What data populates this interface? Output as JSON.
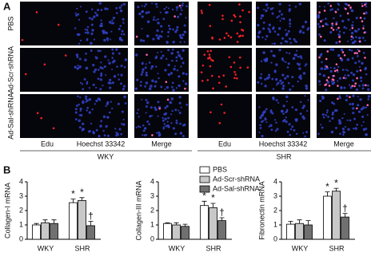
{
  "panel_a": {
    "label": "A",
    "rows": [
      "PBS",
      "Ad-Scr-shRNA",
      "Ad-Sal-shRNA"
    ],
    "columns": [
      "Edu",
      "Hoechst 33342",
      "Merge",
      "Edu",
      "Hoechst 33342",
      "Merge"
    ],
    "groups": [
      "WKY",
      "SHR"
    ]
  },
  "panel_b_label": "B",
  "chart_data": [
    {
      "type": "bar",
      "y_label": "Collagen-I mRNA",
      "categories": [
        "WKY",
        "SHR"
      ],
      "ylim": [
        0,
        4
      ],
      "yticks": [
        0,
        1,
        2,
        3,
        4
      ],
      "series": [
        {
          "name": "PBS",
          "color": "#ffffff",
          "values": [
            1.0,
            2.55
          ],
          "errors": [
            0.1,
            0.25
          ],
          "markers": [
            null,
            "*"
          ]
        },
        {
          "name": "Ad-Scr-shRNA",
          "color": "#c8c8c8",
          "values": [
            1.15,
            2.7
          ],
          "errors": [
            0.2,
            0.2
          ],
          "markers": [
            null,
            "*"
          ]
        },
        {
          "name": "Ad-Sal-shRNA",
          "color": "#707070",
          "values": [
            1.1,
            0.95
          ],
          "errors": [
            0.25,
            0.3
          ],
          "markers": [
            null,
            "†"
          ]
        }
      ]
    },
    {
      "type": "bar",
      "y_label": "Collagen-III mRNA",
      "categories": [
        "WKY",
        "SHR"
      ],
      "ylim": [
        0,
        4
      ],
      "yticks": [
        0,
        1,
        2,
        3,
        4
      ],
      "legend": "top-right",
      "series": [
        {
          "name": "PBS",
          "color": "#ffffff",
          "values": [
            1.1,
            2.35
          ],
          "errors": [
            0.05,
            0.3
          ],
          "markers": [
            null,
            "*"
          ]
        },
        {
          "name": "Ad-Scr-shRNA",
          "color": "#c8c8c8",
          "values": [
            1.0,
            2.2
          ],
          "errors": [
            0.15,
            0.3
          ],
          "markers": [
            null,
            "*"
          ]
        },
        {
          "name": "Ad-Sal-shRNA",
          "color": "#707070",
          "values": [
            0.9,
            1.3
          ],
          "errors": [
            0.15,
            0.2
          ],
          "markers": [
            null,
            "†"
          ]
        }
      ]
    },
    {
      "type": "bar",
      "y_label": "Fibronectin mRNA",
      "categories": [
        "WKY",
        "SHR"
      ],
      "ylim": [
        0,
        4
      ],
      "yticks": [
        0,
        1,
        2,
        3,
        4
      ],
      "series": [
        {
          "name": "PBS",
          "color": "#ffffff",
          "values": [
            1.05,
            3.0
          ],
          "errors": [
            0.2,
            0.3
          ],
          "markers": [
            null,
            "*"
          ]
        },
        {
          "name": "Ad-Scr-shRNA",
          "color": "#c8c8c8",
          "values": [
            1.1,
            3.35
          ],
          "errors": [
            0.25,
            0.2
          ],
          "markers": [
            null,
            "*"
          ]
        },
        {
          "name": "Ad-Sal-shRNA",
          "color": "#707070",
          "values": [
            1.0,
            1.55
          ],
          "errors": [
            0.3,
            0.25
          ],
          "markers": [
            null,
            "†"
          ]
        }
      ]
    }
  ]
}
